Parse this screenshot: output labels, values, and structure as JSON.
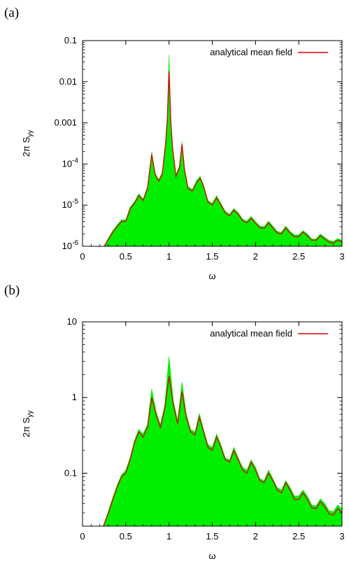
{
  "chart_data": [
    {
      "panel_label": "(a)",
      "type": "area",
      "xlabel": "ω",
      "ylabel": "2π S",
      "ylabel_sub": "yy",
      "xlim": [
        0,
        3
      ],
      "ylim": [
        1e-06,
        0.1
      ],
      "yscale": "log",
      "grid": false,
      "legend": "top-right",
      "xticks": [
        "0",
        "0.5",
        "1",
        "1.5",
        "2",
        "2.5",
        "3"
      ],
      "yticks": [
        {
          "value": 0.1,
          "base": "0.1",
          "exp": ""
        },
        {
          "value": 0.01,
          "base": "0.01",
          "exp": ""
        },
        {
          "value": 0.001,
          "base": "0.001",
          "exp": ""
        },
        {
          "value": 0.0001,
          "base": "10",
          "exp": "-4"
        },
        {
          "value": 1e-05,
          "base": "10",
          "exp": "-5"
        },
        {
          "value": 1e-06,
          "base": "10",
          "exp": "-6"
        }
      ],
      "series": [
        {
          "name": "analytical mean field",
          "color": "#dd0000",
          "x": [
            0.25,
            0.3,
            0.35,
            0.4,
            0.45,
            0.5,
            0.55,
            0.6,
            0.65,
            0.7,
            0.75,
            0.8,
            0.84,
            0.88,
            0.92,
            0.96,
            0.98,
            1.0,
            1.02,
            1.04,
            1.08,
            1.12,
            1.15,
            1.18,
            1.22,
            1.27,
            1.32,
            1.36,
            1.4,
            1.45,
            1.5,
            1.55,
            1.6,
            1.65,
            1.7,
            1.75,
            1.8,
            1.85,
            1.9,
            1.95,
            2.0,
            2.05,
            2.1,
            2.15,
            2.2,
            2.25,
            2.3,
            2.35,
            2.4,
            2.45,
            2.5,
            2.55,
            2.6,
            2.65,
            2.7,
            2.75,
            2.8,
            2.85,
            2.9,
            2.95,
            3.0
          ],
          "y": [
            1e-06,
            1.5e-06,
            2.2e-06,
            3e-06,
            4e-06,
            4e-06,
            8e-06,
            1.1e-05,
            1.7e-05,
            1.3e-05,
            2.5e-05,
            0.00017,
            5.5e-05,
            3.8e-05,
            5.5e-05,
            0.0003,
            0.0012,
            0.018,
            0.0012,
            0.00025,
            5e-05,
            8e-05,
            0.0003,
            7e-05,
            2.5e-05,
            2.2e-05,
            3.5e-05,
            4.5e-05,
            2.8e-05,
            1.2e-05,
            1e-05,
            1.5e-05,
            1e-05,
            6.5e-06,
            5.5e-06,
            7.5e-06,
            6e-06,
            4.2e-06,
            3.7e-06,
            4.8e-06,
            3.6e-06,
            2.8e-06,
            2.7e-06,
            3.7e-06,
            2.8e-06,
            2.1e-06,
            2e-06,
            2.8e-06,
            2.1e-06,
            1.7e-06,
            1.7e-06,
            2.2e-06,
            1.8e-06,
            1.4e-06,
            1.4e-06,
            1.8e-06,
            1.5e-06,
            1.25e-06,
            1.2e-06,
            1.4e-06,
            1.3e-06
          ]
        }
      ],
      "fill_series": {
        "color": "#00ee00",
        "x": [
          0.25,
          0.3,
          0.35,
          0.4,
          0.45,
          0.5,
          0.55,
          0.6,
          0.65,
          0.7,
          0.75,
          0.8,
          0.84,
          0.88,
          0.92,
          0.96,
          0.98,
          1.0,
          1.02,
          1.04,
          1.08,
          1.12,
          1.15,
          1.18,
          1.22,
          1.27,
          1.32,
          1.36,
          1.4,
          1.45,
          1.5,
          1.55,
          1.6,
          1.65,
          1.7,
          1.75,
          1.8,
          1.85,
          1.9,
          1.95,
          2.0,
          2.05,
          2.1,
          2.15,
          2.2,
          2.25,
          2.3,
          2.35,
          2.4,
          2.45,
          2.5,
          2.55,
          2.6,
          2.65,
          2.7,
          2.75,
          2.8,
          2.85,
          2.9,
          2.95,
          3.0
        ],
        "y": [
          1e-06,
          1.6e-06,
          2.4e-06,
          3.3e-06,
          4.4e-06,
          4.4e-06,
          9e-06,
          1.2e-05,
          1.9e-05,
          1.4e-05,
          2.8e-05,
          0.0002,
          6e-05,
          4.2e-05,
          6e-05,
          0.00035,
          0.0015,
          0.045,
          0.0015,
          0.0003,
          5.5e-05,
          9e-05,
          0.00035,
          8e-05,
          2.8e-05,
          2.4e-05,
          4e-05,
          5e-05,
          3.1e-05,
          1.3e-05,
          1.1e-05,
          1.7e-05,
          1.1e-05,
          7.2e-06,
          6e-06,
          8.3e-06,
          6.6e-06,
          4.6e-06,
          4.1e-06,
          5.3e-06,
          4e-06,
          3.1e-06,
          3e-06,
          4.1e-06,
          3.1e-06,
          2.3e-06,
          2.2e-06,
          3.1e-06,
          2.3e-06,
          1.9e-06,
          1.9e-06,
          2.4e-06,
          2e-06,
          1.5e-06,
          1.5e-06,
          2e-06,
          1.65e-06,
          1.4e-06,
          1.3e-06,
          1.55e-06,
          1.4e-06
        ]
      }
    },
    {
      "panel_label": "(b)",
      "type": "area",
      "xlabel": "ω",
      "ylabel": "2π S",
      "ylabel_sub": "yy",
      "xlim": [
        0,
        3
      ],
      "ylim": [
        0.02,
        10
      ],
      "yscale": "log",
      "grid": false,
      "legend": "top-right",
      "xticks": [
        "0",
        "0.5",
        "1",
        "1.5",
        "2",
        "2.5",
        "3"
      ],
      "yticks": [
        {
          "value": 10,
          "base": "10",
          "exp": ""
        },
        {
          "value": 1,
          "base": "1",
          "exp": ""
        },
        {
          "value": 0.1,
          "base": "0.1",
          "exp": ""
        }
      ],
      "series": [
        {
          "name": "analytical mean field",
          "color": "#dd0000",
          "x": [
            0.24,
            0.3,
            0.35,
            0.4,
            0.45,
            0.5,
            0.55,
            0.6,
            0.65,
            0.7,
            0.75,
            0.8,
            0.85,
            0.9,
            0.95,
            1.0,
            1.05,
            1.1,
            1.15,
            1.2,
            1.25,
            1.3,
            1.35,
            1.4,
            1.45,
            1.5,
            1.55,
            1.6,
            1.65,
            1.7,
            1.75,
            1.8,
            1.85,
            1.9,
            1.95,
            2.0,
            2.05,
            2.1,
            2.15,
            2.2,
            2.25,
            2.3,
            2.35,
            2.4,
            2.45,
            2.5,
            2.55,
            2.6,
            2.65,
            2.7,
            2.75,
            2.8,
            2.85,
            2.9,
            2.95,
            3.0
          ],
          "y": [
            0.02,
            0.03,
            0.045,
            0.065,
            0.09,
            0.1,
            0.15,
            0.25,
            0.35,
            0.3,
            0.4,
            1.0,
            0.6,
            0.4,
            0.7,
            1.9,
            0.8,
            0.45,
            1.2,
            0.55,
            0.35,
            0.32,
            0.55,
            0.35,
            0.22,
            0.2,
            0.3,
            0.22,
            0.15,
            0.14,
            0.2,
            0.15,
            0.11,
            0.1,
            0.14,
            0.11,
            0.08,
            0.075,
            0.1,
            0.08,
            0.06,
            0.055,
            0.075,
            0.06,
            0.045,
            0.045,
            0.055,
            0.045,
            0.035,
            0.034,
            0.042,
            0.036,
            0.029,
            0.028,
            0.034,
            0.03
          ]
        }
      ],
      "fill_series": {
        "color": "#00ee00",
        "x": [
          0.24,
          0.3,
          0.35,
          0.4,
          0.45,
          0.5,
          0.55,
          0.6,
          0.65,
          0.7,
          0.75,
          0.8,
          0.85,
          0.9,
          0.95,
          1.0,
          1.05,
          1.1,
          1.15,
          1.2,
          1.25,
          1.3,
          1.35,
          1.4,
          1.45,
          1.5,
          1.55,
          1.6,
          1.65,
          1.7,
          1.75,
          1.8,
          1.85,
          1.9,
          1.95,
          2.0,
          2.05,
          2.1,
          2.15,
          2.2,
          2.25,
          2.3,
          2.35,
          2.4,
          2.45,
          2.5,
          2.55,
          2.6,
          2.65,
          2.7,
          2.75,
          2.8,
          2.85,
          2.9,
          2.95,
          3.0
        ],
        "y": [
          0.02,
          0.032,
          0.048,
          0.07,
          0.095,
          0.11,
          0.16,
          0.27,
          0.38,
          0.33,
          0.44,
          1.3,
          0.66,
          0.44,
          0.8,
          3.5,
          0.9,
          0.5,
          1.6,
          0.6,
          0.38,
          0.35,
          0.62,
          0.38,
          0.24,
          0.22,
          0.33,
          0.24,
          0.16,
          0.15,
          0.22,
          0.16,
          0.12,
          0.11,
          0.15,
          0.12,
          0.085,
          0.08,
          0.11,
          0.085,
          0.065,
          0.06,
          0.08,
          0.065,
          0.05,
          0.05,
          0.06,
          0.05,
          0.038,
          0.037,
          0.046,
          0.04,
          0.032,
          0.031,
          0.038,
          0.034
        ]
      }
    }
  ]
}
